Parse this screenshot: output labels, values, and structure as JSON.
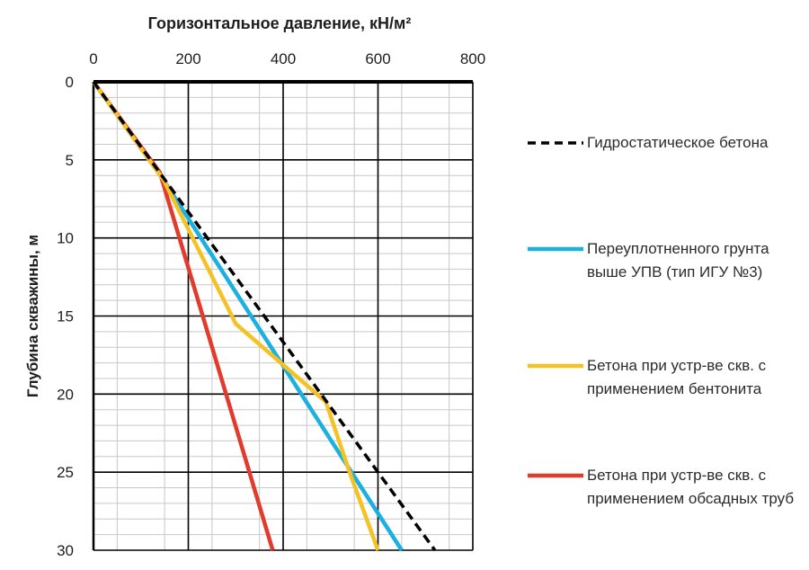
{
  "chart_data": {
    "type": "line",
    "title": "Горизонтальное давление, кН/м²",
    "xlabel": "Горизонтальное давление, кН/м²",
    "ylabel": "Глубина скважины, м",
    "xlim": [
      0,
      800
    ],
    "ylim": [
      0,
      30
    ],
    "y_inverted": true,
    "x_axis_position": "top",
    "x_ticks": [
      "0",
      "200",
      "400",
      "600",
      "800"
    ],
    "y_ticks": [
      "0",
      "5",
      "10",
      "15",
      "20",
      "25",
      "30"
    ],
    "grid": true,
    "legend_position": "right",
    "series": [
      {
        "name": "Гидростатическое бетона",
        "color": "#000000",
        "style": "dashed",
        "points": [
          [
            0,
            0
          ],
          [
            720,
            30
          ]
        ]
      },
      {
        "name": "Переуплотненного грунта выше УПВ (тип ИГУ №3)",
        "color": "#1ab0e0",
        "style": "solid",
        "points": [
          [
            0,
            0
          ],
          [
            148,
            6.3
          ],
          [
            650,
            30
          ]
        ]
      },
      {
        "name": "Бетона при устр-ве скв. с применением бентонита",
        "color": "#f5c226",
        "style": "solid",
        "points": [
          [
            0,
            0
          ],
          [
            148,
            6.3
          ],
          [
            300,
            15.5
          ],
          [
            490,
            20.5
          ],
          [
            540,
            25
          ],
          [
            600,
            30
          ]
        ]
      },
      {
        "name": "Бетона при устр-ве скв. с применением обсадных труб",
        "color": "#e23b2e",
        "style": "solid",
        "points": [
          [
            0,
            0
          ],
          [
            140,
            5.8
          ],
          [
            378,
            30
          ]
        ]
      }
    ]
  }
}
